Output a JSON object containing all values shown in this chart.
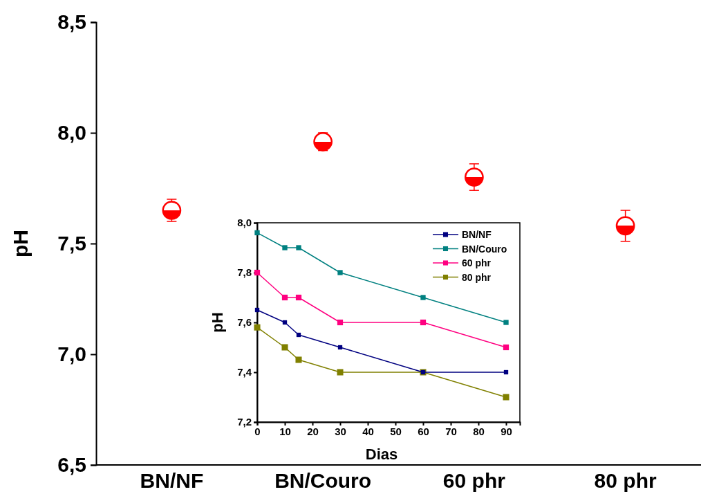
{
  "chart_data": [
    {
      "type": "scatter",
      "ylabel": "pH",
      "categories": [
        "BN/NF",
        "BN/Couro",
        "60 phr",
        "80 phr"
      ],
      "values": [
        7.65,
        7.96,
        7.8,
        7.58
      ],
      "errors": [
        0.05,
        0.04,
        0.06,
        0.07
      ],
      "color": "#ff0000",
      "marker": "circle",
      "ylim": [
        6.5,
        8.5
      ],
      "yticks": [
        {
          "value": 6.5,
          "label": "6,5"
        },
        {
          "value": 7,
          "label": "7,0"
        },
        {
          "value": 7.5,
          "label": "7,5"
        },
        {
          "value": 8,
          "label": "8,0"
        },
        {
          "value": 8.5,
          "label": "8,5"
        }
      ]
    },
    {
      "type": "line",
      "xlabel": "Dias",
      "ylabel": "pH",
      "marker": "square",
      "legend": "top right",
      "x": [
        0,
        10,
        15,
        30,
        60,
        90
      ],
      "xlim": [
        0,
        95
      ],
      "xticks": [
        0,
        10,
        20,
        30,
        40,
        50,
        60,
        70,
        80,
        90
      ],
      "ylim": [
        7.2,
        8.0
      ],
      "yticks": [
        {
          "value": 7.2,
          "label": "7,2"
        },
        {
          "value": 7.4,
          "label": "7,4"
        },
        {
          "value": 7.6,
          "label": "7,6"
        },
        {
          "value": 7.8,
          "label": "7,8"
        },
        {
          "value": 8.0,
          "label": "8,0"
        }
      ],
      "series": [
        {
          "name": "BN/NF",
          "color": "#000080",
          "values": [
            7.65,
            7.6,
            7.55,
            7.5,
            7.4,
            7.4
          ]
        },
        {
          "name": "BN/Couro",
          "color": "#008080",
          "values": [
            7.96,
            7.9,
            7.9,
            7.8,
            7.7,
            7.6
          ]
        },
        {
          "name": "60 phr",
          "color": "#ff0080",
          "values": [
            7.8,
            7.7,
            7.7,
            7.6,
            7.6,
            7.5
          ]
        },
        {
          "name": "80 phr",
          "color": "#808000",
          "values": [
            7.58,
            7.5,
            7.45,
            7.4,
            7.4,
            7.3
          ]
        }
      ]
    }
  ]
}
